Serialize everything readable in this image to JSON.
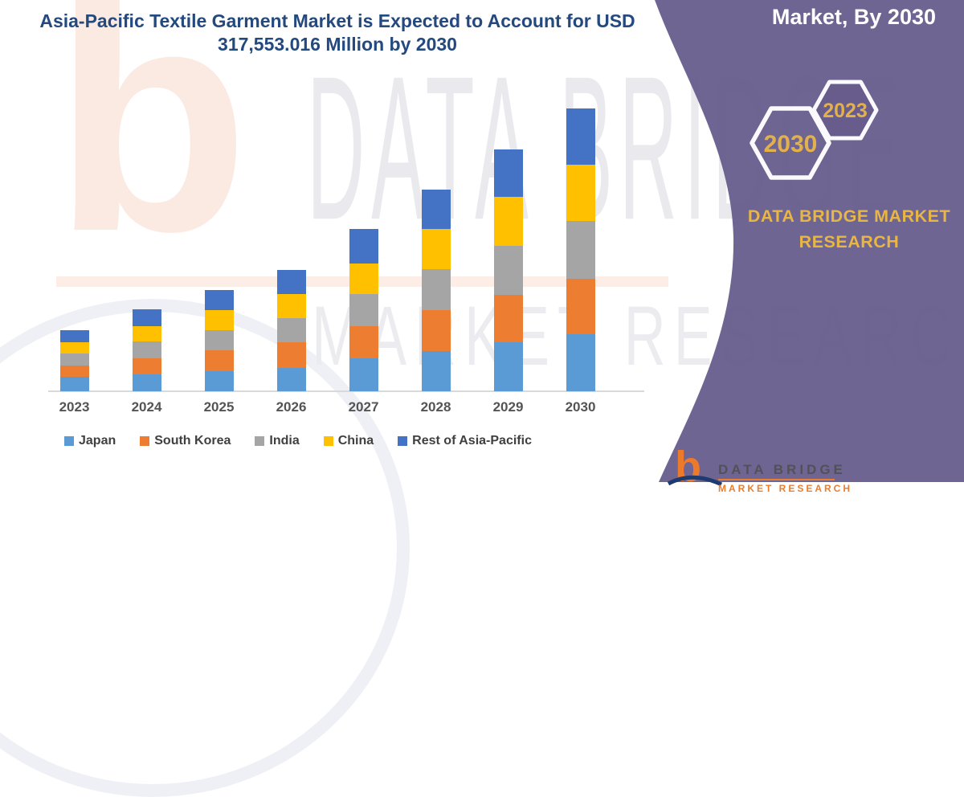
{
  "title": {
    "line1": "Asia-Pacific Textile Garment Market is Expected to Account for USD",
    "line2": "317,553.016 Million by 2030"
  },
  "side_panel": {
    "heading": "Market, By 2030",
    "hexagons": [
      {
        "label": "2030"
      },
      {
        "label": "2023"
      }
    ],
    "brand_line1": "DATA BRIDGE MARKET",
    "brand_line2": "RESEARCH",
    "panel_color": "#675c8c",
    "accent_gold": "#e2b14c"
  },
  "watermark": {
    "letter": "b",
    "line1": "DATA BRIDGE",
    "line2": "MARKET RESEARCH"
  },
  "footer_logo": {
    "glyph": "b",
    "name": "DATA BRIDGE",
    "sub": "MARKET RESEARCH"
  },
  "chart_data": {
    "type": "bar",
    "stacked": true,
    "title": "Asia-Pacific Textile Garment Market is Expected to Account for USD 317,553.016 Million by 2030",
    "unit": "USD Million",
    "total_2030_label": "317,553.016",
    "categories": [
      "2023",
      "2024",
      "2025",
      "2026",
      "2027",
      "2028",
      "2029",
      "2030"
    ],
    "series": [
      {
        "name": "Japan",
        "color": "#5B9BD5",
        "values": [
          15950,
          18740,
          22530,
          26490,
          36670,
          45050,
          54690,
          63700
        ]
      },
      {
        "name": "South Korea",
        "color": "#ED7D31",
        "values": [
          12520,
          18020,
          22980,
          28200,
          36670,
          45680,
          53430,
          62440
        ]
      },
      {
        "name": "India",
        "color": "#A5A5A5",
        "values": [
          14240,
          18740,
          22980,
          27030,
          35680,
          45950,
          55320,
          64600
        ]
      },
      {
        "name": "China",
        "color": "#FFC000",
        "values": [
          12030,
          17570,
          22800,
          27660,
          34600,
          45320,
          54600,
          63070
        ]
      },
      {
        "name": "Rest of Asia-Pacific",
        "color": "#4472C4",
        "values": [
          13790,
          18650,
          22530,
          27030,
          38110,
          44150,
          53160,
          63700
        ]
      }
    ],
    "values_are_estimates": true,
    "y_axis_visible": false,
    "gridlines": false,
    "legend_position": "bottom"
  }
}
